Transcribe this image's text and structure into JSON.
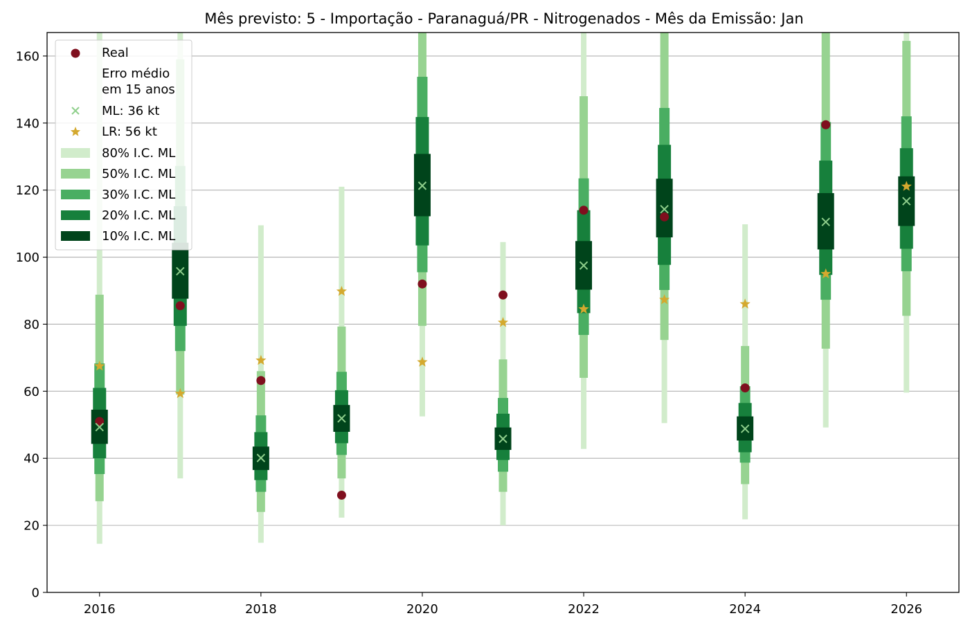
{
  "chart_data": {
    "type": "interval",
    "title": "Mês previsto: 5 - Importação - Paranaguá/PR - Nitrogenados - Mês da Emissão: Jan",
    "xlabel": "",
    "ylabel": "",
    "xlim": [
      2015.35,
      2026.65
    ],
    "ylim": [
      0,
      167
    ],
    "x_ticks": [
      2016,
      2018,
      2020,
      2022,
      2024,
      2026
    ],
    "y_ticks": [
      0,
      20,
      40,
      60,
      80,
      100,
      120,
      140,
      160
    ],
    "grid": "horizontal",
    "legend_position": "top-left",
    "colors": {
      "real": "#7f0f1e",
      "ml_marker": "#8fcf8c",
      "lr_marker": "#d4a92f",
      "ci80": "#d1eccb",
      "ci50": "#97d391",
      "ci30": "#4aae62",
      "ci20": "#17803c",
      "ci10": "#00441b",
      "grid": "#b0b0b0"
    },
    "legend": {
      "real_label": "Real",
      "error_header": "Erro médio\nem 15 anos",
      "ml_label": "ML: 36 kt",
      "lr_label": "LR: 56 kt",
      "ci80_label": "80% I.C. ML",
      "ci50_label": "50% I.C. ML",
      "ci30_label": "30% I.C. ML",
      "ci20_label": "20% I.C. ML",
      "ci10_label": "10% I.C. ML"
    },
    "years": [
      2016,
      2017,
      2018,
      2019,
      2020,
      2021,
      2022,
      2023,
      2024,
      2025,
      2026
    ],
    "real": [
      51,
      85.5,
      63.2,
      29,
      92,
      88.7,
      114,
      112,
      61,
      139.5,
      null
    ],
    "ml": [
      49.3,
      95.8,
      40.1,
      51.9,
      121.3,
      45.8,
      97.5,
      114.3,
      48.8,
      110.5,
      116.7
    ],
    "lr": [
      67.5,
      59.3,
      69.2,
      89.8,
      68.7,
      80.5,
      84.5,
      87.3,
      86,
      95,
      121.1
    ],
    "ci80": [
      [
        14.5,
        167
      ],
      [
        34,
        167
      ],
      [
        14.8,
        109.5
      ],
      [
        22.3,
        121
      ],
      [
        52.5,
        167
      ],
      [
        20,
        104.5
      ],
      [
        42.8,
        167
      ],
      [
        50.5,
        167
      ],
      [
        21.8,
        109.8
      ],
      [
        49.2,
        167
      ],
      [
        59.6,
        167
      ]
    ],
    "ci50": [
      [
        27.2,
        88.8
      ],
      [
        59,
        159
      ],
      [
        24,
        66
      ],
      [
        34,
        79.3
      ],
      [
        79.5,
        167
      ],
      [
        30,
        69.5
      ],
      [
        64,
        148
      ],
      [
        75.3,
        167
      ],
      [
        32.3,
        73.5
      ],
      [
        72.7,
        167
      ],
      [
        82.5,
        164.5
      ]
    ],
    "ci30": [
      [
        35.3,
        68.3
      ],
      [
        72,
        127.2
      ],
      [
        30,
        52.8
      ],
      [
        41,
        65.8
      ],
      [
        95.5,
        153.8
      ],
      [
        36,
        58
      ],
      [
        76.8,
        123.5
      ],
      [
        90.2,
        144.5
      ],
      [
        38.7,
        61.5
      ],
      [
        87.3,
        140.3
      ],
      [
        95.8,
        142
      ]
    ],
    "ci20": [
      [
        40,
        61
      ],
      [
        79.5,
        115.2
      ],
      [
        33.5,
        47.8
      ],
      [
        44.5,
        60.3
      ],
      [
        103.5,
        141.8
      ],
      [
        39.5,
        53.3
      ],
      [
        83.3,
        114
      ],
      [
        97.7,
        133.5
      ],
      [
        41.8,
        56.5
      ],
      [
        94.7,
        128.8
      ],
      [
        102.5,
        132.5
      ]
    ],
    "ci10": [
      [
        44.3,
        54.5
      ],
      [
        87.6,
        104.3
      ],
      [
        36.5,
        43.5
      ],
      [
        47.9,
        55.9
      ],
      [
        112.2,
        130.8
      ],
      [
        42.5,
        49.2
      ],
      [
        90.3,
        104.8
      ],
      [
        105.9,
        123.4
      ],
      [
        45.3,
        52.5
      ],
      [
        102.3,
        119.1
      ],
      [
        109.3,
        124.1
      ]
    ]
  }
}
